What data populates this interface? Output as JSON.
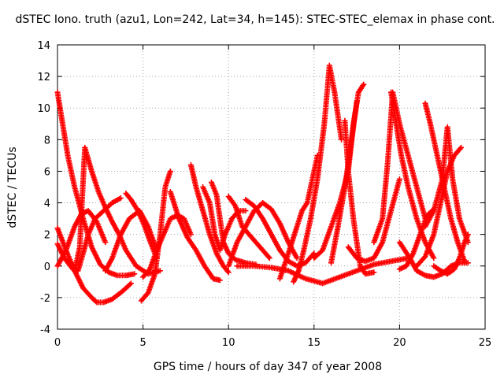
{
  "chart_data": {
    "type": "scatter",
    "title": "dSTEC Iono. truth (azu1, Lon=242, Lat=34, h=145): STEC-STEC_elemax in phase cont.",
    "xlabel": "GPS time / hours of day 347 of year 2008",
    "ylabel": "dSTEC  / TECUs",
    "xlim": [
      0,
      25
    ],
    "ylim": [
      -4,
      14
    ],
    "xticks": [
      0,
      5,
      10,
      15,
      20,
      25
    ],
    "yticks": [
      -4,
      -2,
      0,
      2,
      4,
      6,
      8,
      10,
      12,
      14
    ],
    "grid": true,
    "marker": "+",
    "color": "#ff0000",
    "series": [
      {
        "x": [
          0,
          0.3,
          0.6,
          1.0,
          1.5,
          2.0,
          2.5,
          3.0,
          3.5,
          4.0,
          4.5
        ],
        "y": [
          11.0,
          9.0,
          7.0,
          5.0,
          3.0,
          1.2,
          0.1,
          -0.4,
          -0.6,
          -0.6,
          -0.5
        ]
      },
      {
        "x": [
          0,
          0.5,
          1.0,
          1.5,
          2.0,
          2.3,
          2.7,
          3.2,
          3.8,
          4.3
        ],
        "y": [
          2.4,
          1.0,
          -0.3,
          -1.4,
          -2.0,
          -2.3,
          -2.3,
          -2.1,
          -1.6,
          -1.1
        ]
      },
      {
        "x": [
          0,
          0.4,
          0.9,
          1.2,
          1.5,
          1.8,
          2.2,
          2.7,
          3.2,
          3.7
        ],
        "y": [
          1.4,
          0.5,
          -0.2,
          -0.3,
          0.8,
          2.0,
          3.0,
          3.5,
          4.0,
          4.3
        ]
      },
      {
        "x": [
          0,
          0.5,
          1.0,
          1.4,
          1.8,
          2.3,
          2.8
        ],
        "y": [
          0.0,
          1.0,
          2.5,
          3.3,
          3.5,
          2.8,
          1.5
        ]
      },
      {
        "x": [
          1.0,
          1.3,
          1.6,
          2.0,
          2.4,
          2.8,
          3.2,
          3.6,
          4.0,
          4.6,
          5.3,
          6.0
        ],
        "y": [
          -0.3,
          1.2,
          7.5,
          6.0,
          4.7,
          3.7,
          2.8,
          2.0,
          1.0,
          0.0,
          -0.5,
          -0.3
        ]
      },
      {
        "x": [
          2.8,
          3.2,
          3.7,
          4.2,
          4.8,
          5.3,
          5.8
        ],
        "y": [
          -0.3,
          0.5,
          2.0,
          3.0,
          3.5,
          2.5,
          1.0
        ]
      },
      {
        "x": [
          4.0,
          4.3,
          4.7,
          5.1,
          5.4,
          5.8
        ],
        "y": [
          4.6,
          4.2,
          3.5,
          2.5,
          1.6,
          0.5
        ]
      },
      {
        "x": [
          4.9,
          5.3,
          5.7,
          6.0,
          6.3,
          6.6
        ],
        "y": [
          -2.2,
          -1.7,
          -0.5,
          2.0,
          5.0,
          6.0
        ]
      },
      {
        "x": [
          5.0,
          5.4,
          5.8,
          6.2,
          6.6,
          7.0,
          7.4,
          7.8
        ],
        "y": [
          -0.7,
          -0.2,
          1.0,
          2.0,
          3.0,
          3.2,
          3.0,
          2.0
        ]
      },
      {
        "x": [
          6.6,
          7.1,
          7.6,
          8.1,
          8.6,
          9.1,
          9.5
        ],
        "y": [
          4.7,
          3.0,
          1.8,
          1.0,
          0.0,
          -0.8,
          -0.9
        ]
      },
      {
        "x": [
          7.8,
          8.1,
          8.5,
          8.9,
          9.3,
          9.7,
          10.0
        ],
        "y": [
          6.4,
          5.0,
          3.5,
          2.0,
          0.8,
          0.0,
          -0.4
        ]
      },
      {
        "x": [
          8.5,
          8.9,
          9.2,
          9.5,
          9.8,
          10.2,
          10.6,
          11.0
        ],
        "y": [
          5.0,
          4.0,
          2.0,
          1.0,
          2.0,
          3.0,
          3.5,
          3.5
        ]
      },
      {
        "x": [
          9.0,
          9.3,
          9.5,
          9.7,
          10.0,
          10.4,
          11.0,
          11.6
        ],
        "y": [
          5.3,
          4.5,
          3.0,
          1.5,
          0.8,
          0.4,
          0.2,
          0.1
        ]
      },
      {
        "x": [
          10.0,
          10.4,
          10.8,
          11.2,
          11.6,
          12.0,
          12.4
        ],
        "y": [
          4.4,
          3.8,
          2.5,
          2.0,
          1.5,
          1.0,
          0.5
        ]
      },
      {
        "x": [
          10.0,
          10.5,
          11.0,
          11.5,
          12.0,
          12.5,
          13.0,
          13.5,
          14.0
        ],
        "y": [
          0.0,
          1.5,
          2.5,
          3.5,
          4.0,
          3.6,
          2.7,
          1.5,
          0.5
        ]
      },
      {
        "x": [
          11.0,
          11.5,
          12.0,
          12.5,
          13.0,
          13.5,
          14.0,
          14.5,
          15.0
        ],
        "y": [
          4.2,
          3.8,
          3.0,
          2.0,
          1.0,
          0.3,
          0.0,
          0.2,
          0.8
        ]
      },
      {
        "x": [
          10.5,
          11.5,
          12.5,
          13.5,
          14.5,
          15.5,
          16.5,
          17.5,
          18.5,
          19.5,
          20.5
        ],
        "y": [
          0.0,
          0.0,
          -0.1,
          -0.3,
          -0.8,
          -1.1,
          -0.7,
          -0.3,
          0.1,
          0.3,
          0.5
        ]
      },
      {
        "x": [
          13.8,
          14.1,
          14.4,
          14.8,
          15.2,
          15.6,
          15.9,
          16.2,
          16.6
        ],
        "y": [
          -1.0,
          -0.3,
          1.0,
          3.0,
          5.5,
          9.0,
          12.7,
          11.0,
          8.0
        ]
      },
      {
        "x": [
          13.0,
          13.5,
          14.0,
          14.3,
          14.6,
          14.9,
          15.2
        ],
        "y": [
          -0.8,
          0.8,
          2.5,
          3.5,
          4.0,
          5.5,
          7.0
        ]
      },
      {
        "x": [
          15.0,
          15.5,
          16.0,
          16.5,
          17.0,
          17.3,
          17.6,
          17.9
        ],
        "y": [
          0.5,
          1.0,
          2.5,
          4.0,
          6.0,
          9.0,
          11.0,
          11.5
        ]
      },
      {
        "x": [
          16.0,
          16.4,
          16.8,
          17.2,
          17.5
        ],
        "y": [
          0.2,
          2.5,
          5.0,
          8.0,
          10.4
        ]
      },
      {
        "x": [
          16.8,
          17.0,
          17.3,
          17.7,
          18.0,
          18.5
        ],
        "y": [
          9.2,
          6.0,
          3.0,
          0.0,
          -0.5,
          -0.4
        ]
      },
      {
        "x": [
          17.0,
          17.5,
          18.0,
          18.5,
          19.0,
          19.5,
          20.0
        ],
        "y": [
          1.2,
          0.5,
          0.3,
          0.5,
          1.5,
          3.5,
          5.5
        ]
      },
      {
        "x": [
          18.5,
          19.0,
          19.3,
          19.6,
          20.0,
          20.5,
          21.0,
          21.5
        ],
        "y": [
          1.5,
          3.0,
          6.5,
          11.0,
          9.0,
          7.0,
          5.0,
          3.0
        ]
      },
      {
        "x": [
          19.5,
          19.8,
          20.1,
          20.5,
          21.0,
          21.5,
          22.0
        ],
        "y": [
          11.0,
          9.0,
          7.0,
          5.0,
          3.0,
          1.5,
          0.5
        ]
      },
      {
        "x": [
          20.0,
          20.4,
          20.8,
          21.2,
          21.6,
          22.0
        ],
        "y": [
          -0.2,
          0.0,
          0.8,
          2.0,
          3.2,
          3.6
        ]
      },
      {
        "x": [
          21.5,
          21.8,
          22.2,
          22.6,
          23.0,
          23.4,
          23.8
        ],
        "y": [
          10.3,
          9.0,
          7.0,
          5.0,
          3.0,
          1.5,
          0.3
        ]
      },
      {
        "x": [
          21.0,
          21.5,
          22.0,
          22.4,
          22.8,
          23.2,
          23.6
        ],
        "y": [
          0.0,
          0.6,
          2.0,
          4.0,
          6.0,
          7.0,
          7.5
        ]
      },
      {
        "x": [
          21.5,
          22.0,
          22.5,
          22.8,
          23.1,
          23.5,
          24.0
        ],
        "y": [
          2.5,
          3.5,
          5.5,
          8.8,
          5.5,
          3.0,
          1.5
        ]
      },
      {
        "x": [
          22.0,
          22.4,
          22.8,
          23.2,
          23.5,
          23.8,
          24.0
        ],
        "y": [
          0.0,
          -0.3,
          -0.5,
          -0.2,
          0.5,
          1.5,
          2.0
        ]
      },
      {
        "x": [
          20.0,
          20.6,
          21.0,
          21.5,
          22.0,
          22.5,
          23.0,
          23.5,
          24.0
        ],
        "y": [
          1.5,
          0.5,
          -0.3,
          -0.6,
          -0.7,
          -0.5,
          0.0,
          0.2,
          0.2
        ]
      }
    ]
  }
}
